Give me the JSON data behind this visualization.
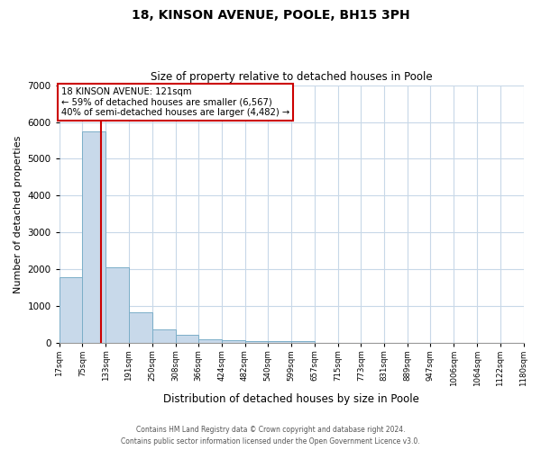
{
  "title": "18, KINSON AVENUE, POOLE, BH15 3PH",
  "subtitle": "Size of property relative to detached houses in Poole",
  "xlabel": "Distribution of detached houses by size in Poole",
  "ylabel": "Number of detached properties",
  "bar_color": "#c8d9ea",
  "bar_edge_color": "#7baec8",
  "bin_labels": [
    "17sqm",
    "75sqm",
    "133sqm",
    "191sqm",
    "250sqm",
    "308sqm",
    "366sqm",
    "424sqm",
    "482sqm",
    "540sqm",
    "599sqm",
    "657sqm",
    "715sqm",
    "773sqm",
    "831sqm",
    "889sqm",
    "947sqm",
    "1006sqm",
    "1064sqm",
    "1122sqm",
    "1180sqm"
  ],
  "bar_values": [
    1780,
    5750,
    2050,
    830,
    370,
    230,
    110,
    70,
    50,
    50,
    50,
    0,
    0,
    0,
    0,
    0,
    0,
    0,
    0,
    0
  ],
  "bin_edges": [
    17,
    75,
    133,
    191,
    250,
    308,
    366,
    424,
    482,
    540,
    599,
    657,
    715,
    773,
    831,
    889,
    947,
    1006,
    1064,
    1122,
    1180
  ],
  "ylim": [
    0,
    7000
  ],
  "yticks": [
    0,
    1000,
    2000,
    3000,
    4000,
    5000,
    6000,
    7000
  ],
  "vline_x": 121,
  "vline_color": "#cc0000",
  "annotation_title": "18 KINSON AVENUE: 121sqm",
  "annotation_line1": "← 59% of detached houses are smaller (6,567)",
  "annotation_line2": "40% of semi-detached houses are larger (4,482) →",
  "annotation_box_color": "#cc0000",
  "footer_line1": "Contains HM Land Registry data © Crown copyright and database right 2024.",
  "footer_line2": "Contains public sector information licensed under the Open Government Licence v3.0.",
  "bg_color": "#ffffff",
  "grid_color": "#c8d8e8"
}
